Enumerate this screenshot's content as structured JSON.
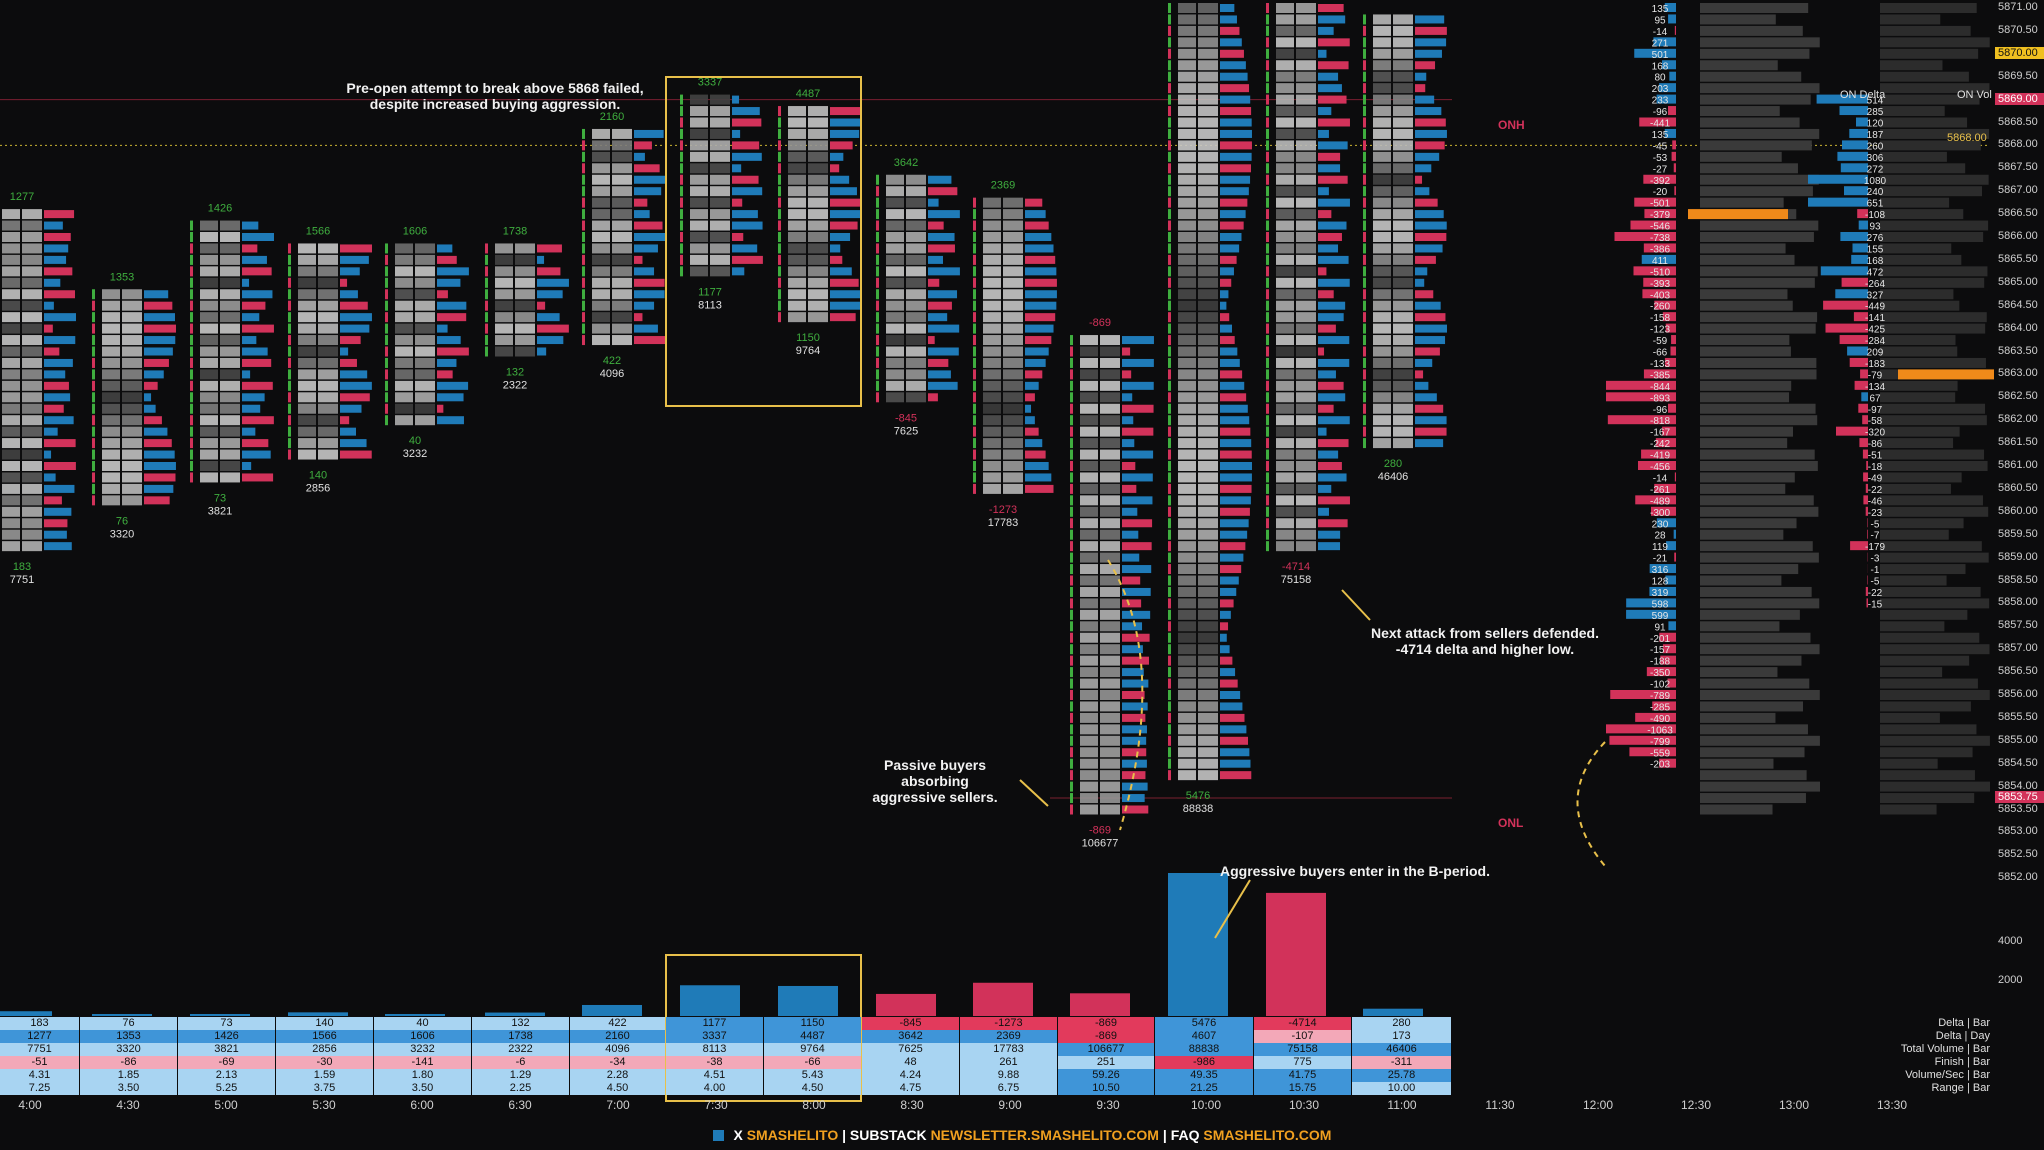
{
  "annotations": {
    "preopen": "Pre-open attempt to break above 5868 failed,\ndespite increased buying aggression.",
    "passive": "Passive buyers absorbing\naggressive sellers.",
    "bperiod": "Aggressive buyers enter in the B-period.",
    "sellers": "Next attack from sellers defended.\n-4714 delta and higher low."
  },
  "levels": {
    "onh": "ONH",
    "onl": "ONL"
  },
  "profile_headers": {
    "on_delta": "ON Delta",
    "on_vol": "ON Vol"
  },
  "price_axis": {
    "ticks": [
      "5871.00",
      "5870.50",
      "5869.50",
      "5868.50",
      "5868.00",
      "5867.50",
      "5867.00",
      "5866.50",
      "5866.00",
      "5865.50",
      "5865.00",
      "5864.50",
      "5864.00",
      "5863.50",
      "5863.00",
      "5862.50",
      "5862.00",
      "5861.50",
      "5861.00",
      "5860.50",
      "5860.00",
      "5859.50",
      "5859.00",
      "5858.50",
      "5858.00",
      "5857.50",
      "5857.00",
      "5856.50",
      "5856.00",
      "5855.50",
      "5855.00",
      "5854.50",
      "5854.00",
      "5853.50",
      "5853.00",
      "5852.50",
      "5852.00",
      "4000",
      "2000"
    ],
    "current_price": "5870.00",
    "onh_tag": "5869.00",
    "onl_tag": "5853.75",
    "marker_5868": "5868.00"
  },
  "bars": [
    {
      "time": "4:00",
      "delta": "183",
      "delta_day": "1277",
      "volume": "7751",
      "finish": "-51",
      "vol_sec": "4.31",
      "range": "7.25",
      "top_label": "1277",
      "bot_delta": "183",
      "bot_vol": "7751"
    },
    {
      "time": "4:30",
      "delta": "76",
      "delta_day": "1353",
      "volume": "3320",
      "finish": "-86",
      "vol_sec": "1.85",
      "range": "3.50",
      "top_label": "1353",
      "bot_delta": "76",
      "bot_vol": "3320"
    },
    {
      "time": "5:00",
      "delta": "73",
      "delta_day": "1426",
      "volume": "3821",
      "finish": "-69",
      "vol_sec": "2.13",
      "range": "5.25",
      "top_label": "1426",
      "bot_delta": "73",
      "bot_vol": "3821"
    },
    {
      "time": "5:30",
      "delta": "140",
      "delta_day": "1566",
      "volume": "2856",
      "finish": "-30",
      "vol_sec": "1.59",
      "range": "3.75",
      "top_label": "1566",
      "bot_delta": "140",
      "bot_vol": "2856"
    },
    {
      "time": "6:00",
      "delta": "40",
      "delta_day": "1606",
      "volume": "3232",
      "finish": "-141",
      "vol_sec": "1.80",
      "range": "3.50",
      "top_label": "1606",
      "bot_delta": "40",
      "bot_vol": "3232"
    },
    {
      "time": "6:30",
      "delta": "132",
      "delta_day": "1738",
      "volume": "2322",
      "finish": "-6",
      "vol_sec": "1.29",
      "range": "2.25",
      "top_label": "1738",
      "bot_delta": "132",
      "bot_vol": "2322"
    },
    {
      "time": "7:00",
      "delta": "422",
      "delta_day": "2160",
      "volume": "4096",
      "finish": "-34",
      "vol_sec": "2.28",
      "range": "4.50",
      "top_label": "2160",
      "bot_delta": "422",
      "bot_vol": "4096"
    },
    {
      "time": "7:30",
      "delta": "1177",
      "delta_day": "3337",
      "volume": "8113",
      "finish": "-38",
      "vol_sec": "4.51",
      "range": "4.00",
      "top_label": "3337",
      "bot_delta": "1177",
      "bot_vol": "8113"
    },
    {
      "time": "8:00",
      "delta": "1150",
      "delta_day": "4487",
      "volume": "9764",
      "finish": "-66",
      "vol_sec": "5.43",
      "range": "4.50",
      "top_label": "4487",
      "bot_delta": "1150",
      "bot_vol": "9764"
    },
    {
      "time": "8:30",
      "delta": "-845",
      "delta_day": "3642",
      "volume": "7625",
      "finish": "48",
      "vol_sec": "4.24",
      "range": "4.75",
      "top_label": "3642",
      "bot_delta": "-845",
      "bot_vol": "7625"
    },
    {
      "time": "9:00",
      "delta": "-1273",
      "delta_day": "2369",
      "volume": "17783",
      "finish": "261",
      "vol_sec": "9.88",
      "range": "6.75",
      "top_label": "2369",
      "bot_delta": "-1273",
      "bot_vol": "17783"
    },
    {
      "time": "9:30",
      "delta": "-869",
      "delta_day": "-869",
      "volume": "106677",
      "finish": "251",
      "vol_sec": "59.26",
      "range": "10.50",
      "top_label": "-869",
      "bot_delta": "-869",
      "bot_vol": "106677"
    },
    {
      "time": "10:00",
      "delta": "5476",
      "delta_day": "4607",
      "volume": "88838",
      "finish": "-986",
      "vol_sec": "49.35",
      "range": "21.25",
      "top_label": "",
      "bot_delta": "5476",
      "bot_vol": "88838"
    },
    {
      "time": "10:30",
      "delta": "-4714",
      "delta_day": "-107",
      "volume": "75158",
      "finish": "775",
      "vol_sec": "41.75",
      "range": "15.75",
      "top_label": "",
      "bot_delta": "-4714",
      "bot_vol": "75158"
    },
    {
      "time": "11:00",
      "delta": "280",
      "delta_day": "173",
      "volume": "46406",
      "finish": "-311",
      "vol_sec": "25.78",
      "range": "10.00",
      "top_label": "",
      "bot_delta": "280",
      "bot_vol": "46406"
    }
  ],
  "stat_labels": [
    "Delta | Bar",
    "Delta | Day",
    "Total Volume | Bar",
    "Finish | Bar",
    "Volume/Sec | Bar",
    "Range | Bar"
  ],
  "time_axis_extra": [
    "11:30",
    "12:00",
    "12:30",
    "13:00",
    "13:30"
  ],
  "on_delta_values": [
    "514",
    "285",
    "120",
    "187",
    "260",
    "306",
    "272",
    "1080",
    "240",
    "651",
    "-108",
    "93",
    "276",
    "155",
    "168",
    "472",
    "-264",
    "327",
    "-449",
    "-141",
    "-425",
    "-284",
    "209",
    "-183",
    "-79",
    "-134",
    "67",
    "-97",
    "-58",
    "-320",
    "-86",
    "-51",
    "-18",
    "-49",
    "-22",
    "-46",
    "-23",
    "-5",
    "-7",
    "-179",
    "-3",
    "-1",
    "-5",
    "-22",
    "-15"
  ],
  "profile_delta_values": [
    "135",
    "95",
    "-14",
    "271",
    "501",
    "168",
    "80",
    "203",
    "233",
    "-96",
    "-441",
    "135",
    "-45",
    "-53",
    "-27",
    "-392",
    "-20",
    "-501",
    "-379",
    "-546",
    "-738",
    "-386",
    "411",
    "-510",
    "-393",
    "-403",
    "-260",
    "-158",
    "-123",
    "-59",
    "-66",
    "-133",
    "-385",
    "-844",
    "-893",
    "-96",
    "-818",
    "-167",
    "-242",
    "-419",
    "-456",
    "-14",
    "-261",
    "-489",
    "-300",
    "230",
    "28",
    "119",
    "-21",
    "316",
    "128",
    "319",
    "598",
    "599",
    "91",
    "-201",
    "-157",
    "-188",
    "-350",
    "-102",
    "-789",
    "-285",
    "-490",
    "-1063",
    "-799",
    "-559",
    "-203"
  ],
  "footer": {
    "x_label": "X",
    "x_handle": "SMASHELITO",
    "substack_label": "SUBSTACK",
    "substack_url": "NEWSLETTER.SMASHELITO.COM",
    "faq_label": "FAQ",
    "faq_url": "SMASHELITO.COM"
  },
  "colors": {
    "buy": "#1f7bb8",
    "sell": "#d2325a",
    "bg": "#0c0c0d",
    "accent": "#f0a020",
    "green": "#3fae3f"
  }
}
